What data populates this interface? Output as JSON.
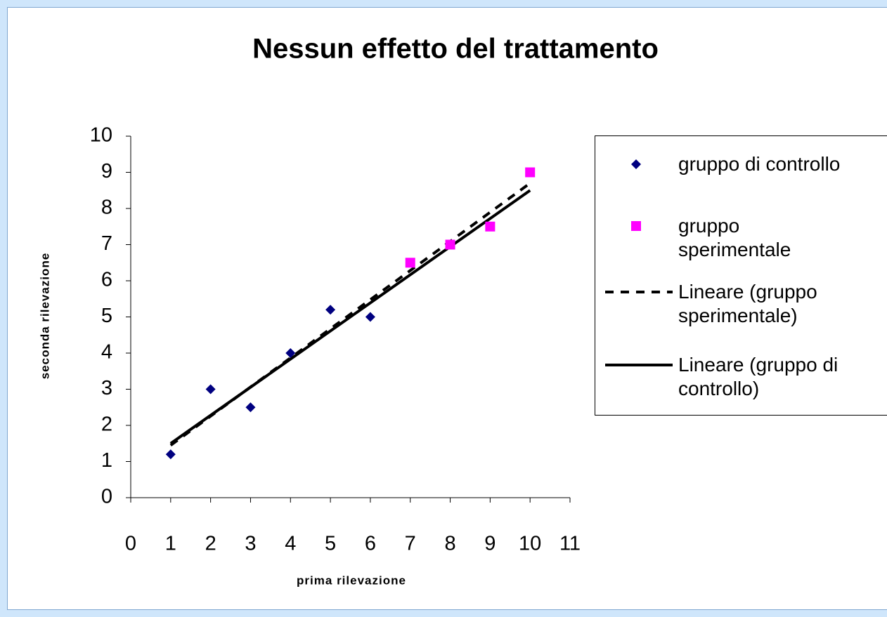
{
  "chart_data": {
    "type": "scatter",
    "title": "Nessun effetto del trattamento",
    "xlabel": "prima rilevazione",
    "ylabel": "seconda rilevazione",
    "xlim": [
      0,
      11
    ],
    "ylim": [
      0,
      10
    ],
    "xticks": [
      0,
      1,
      2,
      3,
      4,
      5,
      6,
      7,
      8,
      9,
      10,
      11
    ],
    "yticks": [
      0,
      1,
      2,
      3,
      4,
      5,
      6,
      7,
      8,
      9,
      10
    ],
    "legend": "right",
    "series": [
      {
        "name": "gruppo di controllo",
        "color": "#000080",
        "marker": "diamond",
        "x": [
          1,
          2,
          3,
          4,
          5,
          6
        ],
        "values": [
          1.2,
          3,
          2.5,
          4,
          5.2,
          5
        ]
      },
      {
        "name": "gruppo sperimentale",
        "color": "#ff00ff",
        "marker": "square",
        "x": [
          7,
          8,
          9,
          10
        ],
        "values": [
          6.5,
          7,
          7.5,
          9
        ]
      },
      {
        "name": "Lineare (gruppo sperimentale)",
        "color": "#000000",
        "line": "dashed",
        "x": [
          1,
          10
        ],
        "values": [
          1.45,
          8.7
        ]
      },
      {
        "name": "Lineare (gruppo di controllo)",
        "color": "#000000",
        "line": "solid",
        "x": [
          1,
          10
        ],
        "values": [
          1.5,
          8.5
        ]
      }
    ]
  }
}
